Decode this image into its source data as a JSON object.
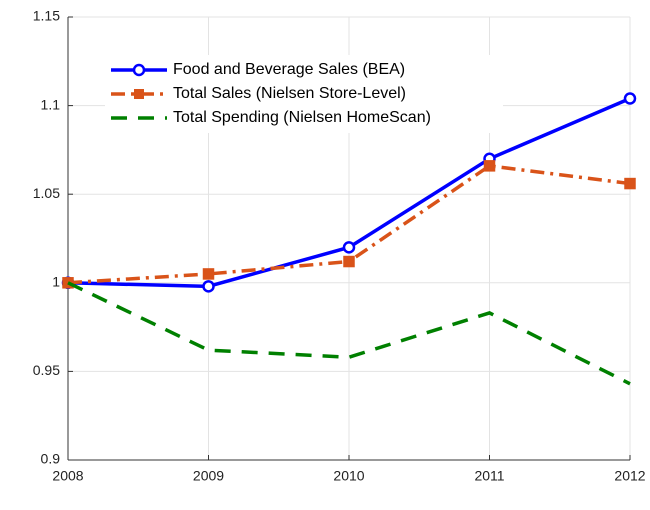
{
  "chart_data": {
    "type": "line",
    "x": [
      2008,
      2009,
      2010,
      2011,
      2012
    ],
    "xlim": [
      2008,
      2012
    ],
    "xticks": [
      2008,
      2009,
      2010,
      2011,
      2012
    ],
    "ylim": [
      0.9,
      1.15
    ],
    "yticks": [
      0.9,
      0.95,
      1,
      1.05,
      1.1,
      1.15
    ],
    "grid": true,
    "legend_position": "upper-left",
    "series": [
      {
        "name": "Food and Beverage Sales (BEA)",
        "color": "#0000ff",
        "line_style": "solid",
        "marker": "circle",
        "values": [
          1.0,
          0.998,
          1.02,
          1.07,
          1.104
        ]
      },
      {
        "name": "Total Sales (Nielsen Store-Level)",
        "color": "#d95319",
        "line_style": "dashdot",
        "marker": "square",
        "values": [
          1.0,
          1.005,
          1.012,
          1.066,
          1.056
        ]
      },
      {
        "name": "Total Spending (Nielsen HomeScan)",
        "color": "#008000",
        "line_style": "dashed",
        "marker": "none",
        "values": [
          1.0,
          0.962,
          0.958,
          0.983,
          0.943
        ]
      }
    ]
  }
}
